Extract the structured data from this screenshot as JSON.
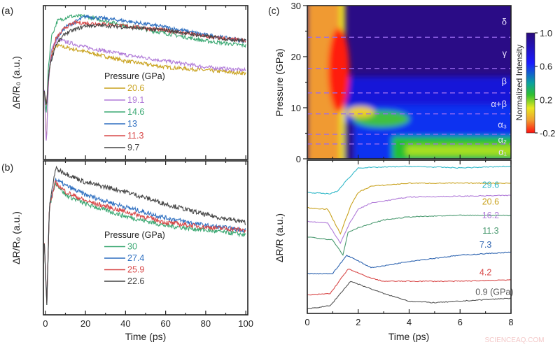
{
  "chart_data": [
    {
      "panel": "(a)",
      "type": "line",
      "xlabel": "Time (ps)",
      "ylabel": "ΔR/R₀ (a.u.)",
      "xlim": [
        -1,
        101
      ],
      "xticks": [
        0,
        20,
        40,
        60,
        80,
        100
      ],
      "ylim": [
        0,
        1
      ],
      "legend_title": "Pressure (GPa)",
      "legend_position": "center",
      "series": [
        {
          "name": "20.6",
          "color": "#c9a21e",
          "points": [
            [
              -0.5,
              0.44
            ],
            [
              0.5,
              0.1
            ],
            [
              1.5,
              0.5
            ],
            [
              3,
              0.7
            ],
            [
              6,
              0.74
            ],
            [
              20,
              0.7
            ],
            [
              40,
              0.64
            ],
            [
              60,
              0.6
            ],
            [
              80,
              0.58
            ],
            [
              100,
              0.56
            ]
          ]
        },
        {
          "name": "19.1",
          "color": "#b07ad8",
          "points": [
            [
              -0.5,
              0.44
            ],
            [
              0.5,
              0.08
            ],
            [
              1.5,
              0.5
            ],
            [
              3,
              0.72
            ],
            [
              6,
              0.78
            ],
            [
              20,
              0.73
            ],
            [
              40,
              0.68
            ],
            [
              60,
              0.64
            ],
            [
              80,
              0.6
            ],
            [
              100,
              0.58
            ]
          ]
        },
        {
          "name": "14.6",
          "color": "#3aa872",
          "points": [
            [
              -0.5,
              0.44
            ],
            [
              0.5,
              0.3
            ],
            [
              1.5,
              0.6
            ],
            [
              3,
              0.8
            ],
            [
              6,
              0.9
            ],
            [
              12,
              0.93
            ],
            [
              20,
              0.93
            ],
            [
              40,
              0.87
            ],
            [
              60,
              0.82
            ],
            [
              80,
              0.77
            ],
            [
              100,
              0.74
            ]
          ]
        },
        {
          "name": "13",
          "color": "#2e6fc0",
          "points": [
            [
              -0.5,
              0.44
            ],
            [
              0.5,
              0.35
            ],
            [
              2,
              0.6
            ],
            [
              5,
              0.78
            ],
            [
              10,
              0.86
            ],
            [
              20,
              0.93
            ],
            [
              40,
              0.9
            ],
            [
              60,
              0.86
            ],
            [
              80,
              0.81
            ],
            [
              100,
              0.77
            ]
          ]
        },
        {
          "name": "11.3",
          "color": "#d84848",
          "points": [
            [
              -0.5,
              0.44
            ],
            [
              0.5,
              0.35
            ],
            [
              2,
              0.6
            ],
            [
              5,
              0.78
            ],
            [
              10,
              0.86
            ],
            [
              15,
              0.89
            ],
            [
              30,
              0.88
            ],
            [
              60,
              0.84
            ],
            [
              80,
              0.8
            ],
            [
              100,
              0.77
            ]
          ]
        },
        {
          "name": "9.7",
          "color": "#444444",
          "points": [
            [
              -0.5,
              0.44
            ],
            [
              0.5,
              0.35
            ],
            [
              2,
              0.6
            ],
            [
              5,
              0.74
            ],
            [
              10,
              0.82
            ],
            [
              20,
              0.87
            ],
            [
              30,
              0.87
            ],
            [
              60,
              0.84
            ],
            [
              80,
              0.8
            ],
            [
              100,
              0.77
            ]
          ]
        }
      ]
    },
    {
      "panel": "(b)",
      "type": "line",
      "xlabel": "Time (ps)",
      "ylabel": "ΔR/R₀ (a.u.)",
      "xlim": [
        -1,
        101
      ],
      "xticks": [
        0,
        20,
        40,
        60,
        80,
        100
      ],
      "ylim": [
        0,
        1
      ],
      "legend_title": "Pressure (GPa)",
      "legend_position": "bottom-center",
      "series": [
        {
          "name": "30",
          "color": "#3aa872",
          "points": [
            [
              -0.5,
              0.46
            ],
            [
              0.7,
              0.07
            ],
            [
              2,
              0.7
            ],
            [
              5,
              0.86
            ],
            [
              10,
              0.78
            ],
            [
              20,
              0.72
            ],
            [
              40,
              0.64
            ],
            [
              60,
              0.58
            ],
            [
              80,
              0.55
            ],
            [
              100,
              0.52
            ]
          ]
        },
        {
          "name": "27.4",
          "color": "#2e6fc0",
          "points": [
            [
              -0.5,
              0.46
            ],
            [
              0.7,
              0.07
            ],
            [
              2,
              0.7
            ],
            [
              5,
              0.88
            ],
            [
              10,
              0.84
            ],
            [
              20,
              0.78
            ],
            [
              40,
              0.7
            ],
            [
              60,
              0.63
            ],
            [
              80,
              0.58
            ],
            [
              100,
              0.55
            ]
          ]
        },
        {
          "name": "25.9",
          "color": "#d84848",
          "points": [
            [
              -0.5,
              0.46
            ],
            [
              0.7,
              0.07
            ],
            [
              2,
              0.7
            ],
            [
              5,
              0.86
            ],
            [
              10,
              0.8
            ],
            [
              20,
              0.74
            ],
            [
              40,
              0.67
            ],
            [
              60,
              0.6
            ],
            [
              80,
              0.57
            ],
            [
              100,
              0.55
            ]
          ]
        },
        {
          "name": "22.6",
          "color": "#444444",
          "points": [
            [
              -0.5,
              0.46
            ],
            [
              0.7,
              0.07
            ],
            [
              2,
              0.7
            ],
            [
              5,
              0.95
            ],
            [
              10,
              0.92
            ],
            [
              20,
              0.86
            ],
            [
              40,
              0.8
            ],
            [
              60,
              0.72
            ],
            [
              80,
              0.65
            ],
            [
              100,
              0.6
            ]
          ]
        }
      ]
    },
    {
      "panel": "(c)",
      "type": "heatmap",
      "ylabel": "Pressure (GPa)",
      "xlim": [
        0,
        8
      ],
      "ylim": [
        0,
        30
      ],
      "yticks": [
        0,
        10,
        20,
        30
      ],
      "colorbar": {
        "label": "Normalized Intensity",
        "ticks": [
          "1.0",
          "0.6",
          "0.2",
          "-0.2"
        ],
        "range": [
          -0.2,
          1.0
        ]
      },
      "phase_boundaries_gpa": [
        23.8,
        17.7,
        12.9,
        8.8,
        4.8,
        2.9
      ],
      "phase_labels": [
        "δ",
        "γ",
        "β",
        "α+β",
        "α₃",
        "α₂",
        "α₁"
      ]
    },
    {
      "panel": "(c-lower)",
      "type": "line",
      "xlabel": "Time (ps)",
      "ylabel": "ΔR/R (a.u.)",
      "xlim": [
        0,
        8
      ],
      "xticks": [
        0,
        2,
        4,
        6,
        8
      ],
      "ylim": [
        0,
        1
      ],
      "series": [
        {
          "name": "29.6",
          "color": "#30b8c8",
          "points": [
            [
              0,
              0.79
            ],
            [
              0.9,
              0.78
            ],
            [
              1.2,
              0.8
            ],
            [
              1.5,
              0.86
            ],
            [
              2,
              0.95
            ],
            [
              4,
              0.96
            ],
            [
              6,
              0.95
            ],
            [
              8,
              0.96
            ]
          ]
        },
        {
          "name": "20.6",
          "color": "#c9a21e",
          "points": [
            [
              0,
              0.69
            ],
            [
              0.8,
              0.68
            ],
            [
              1.3,
              0.52
            ],
            [
              1.7,
              0.7
            ],
            [
              2,
              0.79
            ],
            [
              2.5,
              0.83
            ],
            [
              4,
              0.85
            ],
            [
              8,
              0.85
            ]
          ]
        },
        {
          "name": "16.2",
          "color": "#b07ad8",
          "points": [
            [
              0,
              0.6
            ],
            [
              0.8,
              0.59
            ],
            [
              1.3,
              0.46
            ],
            [
              1.7,
              0.6
            ],
            [
              2,
              0.68
            ],
            [
              2.5,
              0.72
            ],
            [
              4,
              0.76
            ],
            [
              8,
              0.77
            ]
          ]
        },
        {
          "name": "11.3",
          "color": "#4a9a70",
          "points": [
            [
              0,
              0.5
            ],
            [
              1,
              0.48
            ],
            [
              1.4,
              0.38
            ],
            [
              1.6,
              0.53
            ],
            [
              2,
              0.56
            ],
            [
              3,
              0.61
            ],
            [
              4,
              0.63
            ],
            [
              6,
              0.64
            ],
            [
              8,
              0.64
            ]
          ]
        },
        {
          "name": "7.3",
          "color": "#2e64b0",
          "points": [
            [
              0,
              0.26
            ],
            [
              1,
              0.26
            ],
            [
              1.55,
              0.38
            ],
            [
              2.5,
              0.3
            ],
            [
              3,
              0.31
            ],
            [
              4,
              0.34
            ],
            [
              6,
              0.38
            ],
            [
              8,
              0.4
            ]
          ]
        },
        {
          "name": "4.2",
          "color": "#d84848",
          "points": [
            [
              0,
              0.12
            ],
            [
              0.9,
              0.13
            ],
            [
              1.6,
              0.29
            ],
            [
              2.5,
              0.23
            ],
            [
              3,
              0.21
            ],
            [
              6,
              0.21
            ],
            [
              8,
              0.22
            ]
          ]
        },
        {
          "name": "0.9 (GPa)",
          "color": "#555555",
          "points": [
            [
              0,
              0.03
            ],
            [
              0.9,
              0.05
            ],
            [
              1.7,
              0.21
            ],
            [
              3,
              0.13
            ],
            [
              4,
              0.08
            ],
            [
              5,
              0.07
            ],
            [
              8,
              0.1
            ]
          ]
        }
      ]
    }
  ],
  "labels": {
    "a": "(a)",
    "b": "(b)",
    "c": "(c)"
  },
  "watermark": "SCIENCEAQ.COM"
}
